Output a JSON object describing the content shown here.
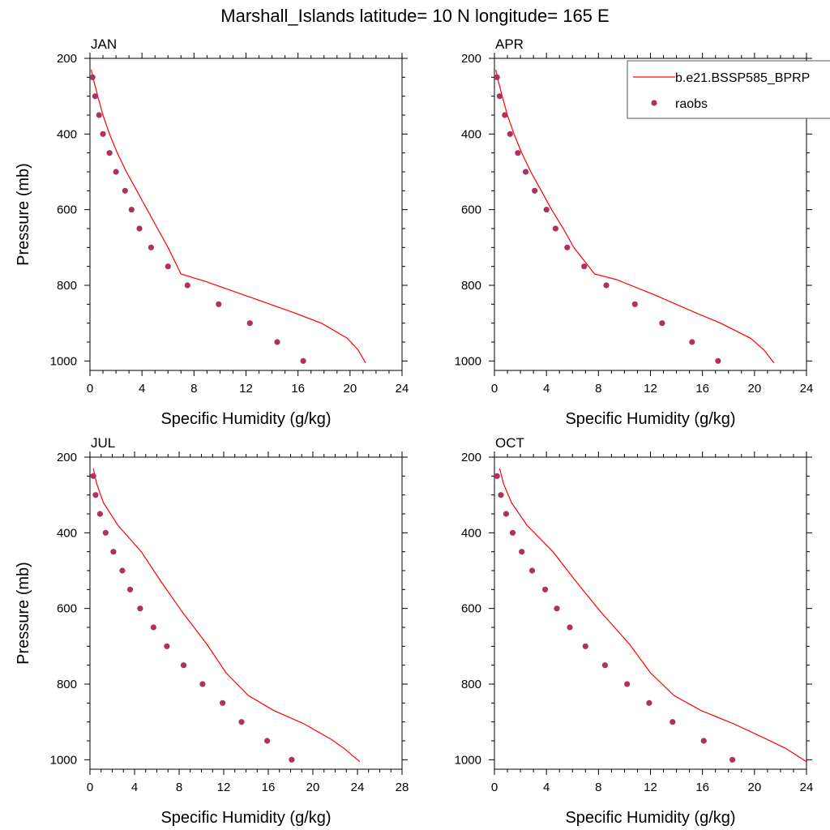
{
  "figure": {
    "title": "Marshall_Islands  latitude= 10 N longitude= 165 E"
  },
  "legend": {
    "model_label": "b.e21.BSSP585_BPRP",
    "obs_label": "raobs",
    "model_color": "#ff0000",
    "obs_color": "#b03060"
  },
  "chart_data": [
    {
      "type": "line",
      "panel": "JAN",
      "title": "JAN",
      "xlabel": "Specific Humidity (g/kg)",
      "ylabel": "Pressure (mb)",
      "xlim": [
        0,
        24
      ],
      "ylim": [
        1025,
        200
      ],
      "xticks": [
        0,
        4,
        8,
        12,
        16,
        20,
        24
      ],
      "yticks": [
        200,
        400,
        600,
        800,
        1000
      ],
      "series": [
        {
          "name": "b.e21.BSSP585_BPRP",
          "style": "line",
          "x": [
            0.1,
            0.3,
            0.6,
            1.0,
            1.5,
            2.1,
            2.8,
            3.6,
            4.4,
            5.2,
            6.0,
            7.0,
            8.9,
            11.8,
            15.5,
            17.8,
            19.8,
            20.6,
            21.2
          ],
          "y": [
            230,
            260,
            300,
            350,
            400,
            450,
            500,
            550,
            600,
            650,
            700,
            770,
            790,
            825,
            870,
            900,
            940,
            970,
            1005
          ]
        },
        {
          "name": "raobs",
          "style": "markers",
          "x": [
            0.2,
            0.4,
            0.7,
            1.0,
            1.5,
            2.0,
            2.7,
            3.2,
            3.8,
            4.7,
            6.0,
            7.5,
            9.9,
            12.3,
            14.4,
            16.4
          ],
          "y": [
            250,
            300,
            350,
            400,
            450,
            500,
            550,
            600,
            650,
            700,
            750,
            800,
            850,
            900,
            950,
            1000
          ]
        }
      ]
    },
    {
      "type": "line",
      "panel": "APR",
      "title": "APR",
      "xlabel": "Specific Humidity (g/kg)",
      "ylabel": "",
      "xlim": [
        0,
        24
      ],
      "ylim": [
        1025,
        200
      ],
      "xticks": [
        0,
        4,
        8,
        12,
        16,
        20,
        24
      ],
      "yticks": [
        200,
        400,
        600,
        800,
        1000
      ],
      "series": [
        {
          "name": "b.e21.BSSP585_BPRP",
          "style": "line",
          "x": [
            0.1,
            0.3,
            0.6,
            1.0,
            1.5,
            2.1,
            2.8,
            3.6,
            4.4,
            5.3,
            6.1,
            7.7,
            9.4,
            12.3,
            15.3,
            17.4,
            19.7,
            20.7,
            21.5
          ],
          "y": [
            230,
            260,
            300,
            350,
            400,
            450,
            500,
            550,
            600,
            650,
            700,
            770,
            785,
            825,
            870,
            900,
            940,
            970,
            1005
          ]
        },
        {
          "name": "raobs",
          "style": "markers",
          "x": [
            0.2,
            0.4,
            0.8,
            1.2,
            1.8,
            2.4,
            3.1,
            4.0,
            4.7,
            5.6,
            6.9,
            8.6,
            10.8,
            12.9,
            15.2,
            17.2
          ],
          "y": [
            250,
            300,
            350,
            400,
            450,
            500,
            550,
            600,
            650,
            700,
            750,
            800,
            850,
            900,
            950,
            1000
          ]
        }
      ]
    },
    {
      "type": "line",
      "panel": "JUL",
      "title": "JUL",
      "xlabel": "Specific Humidity (g/kg)",
      "ylabel": "Pressure (mb)",
      "xlim": [
        0,
        28
      ],
      "ylim": [
        1025,
        200
      ],
      "xticks": [
        0,
        4,
        8,
        12,
        16,
        20,
        24,
        28
      ],
      "yticks": [
        200,
        400,
        600,
        800,
        1000
      ],
      "series": [
        {
          "name": "b.e21.BSSP585_BPRP",
          "style": "line",
          "x": [
            0.3,
            0.6,
            1.2,
            2.5,
            4.6,
            6.4,
            8.3,
            10.5,
            12.2,
            14.2,
            16.5,
            19.2,
            21.6,
            22.8,
            24.2
          ],
          "y": [
            230,
            270,
            320,
            380,
            450,
            530,
            610,
            695,
            770,
            830,
            870,
            905,
            945,
            970,
            1005
          ]
        },
        {
          "name": "raobs",
          "style": "markers",
          "x": [
            0.3,
            0.5,
            0.9,
            1.4,
            2.1,
            2.9,
            3.6,
            4.5,
            5.7,
            6.9,
            8.4,
            10.1,
            11.9,
            13.6,
            15.9,
            18.1
          ],
          "y": [
            250,
            300,
            350,
            400,
            450,
            500,
            550,
            600,
            650,
            700,
            750,
            800,
            850,
            900,
            950,
            1000
          ]
        }
      ]
    },
    {
      "type": "line",
      "panel": "OCT",
      "title": "OCT",
      "xlabel": "Specific Humidity (g/kg)",
      "ylabel": "",
      "xlim": [
        0,
        24
      ],
      "ylim": [
        1025,
        200
      ],
      "xticks": [
        0,
        4,
        8,
        12,
        16,
        20,
        24
      ],
      "yticks": [
        200,
        400,
        600,
        800,
        1000
      ],
      "series": [
        {
          "name": "b.e21.BSSP585_BPRP",
          "style": "line",
          "x": [
            0.4,
            0.7,
            1.3,
            2.5,
            4.5,
            6.3,
            8.2,
            10.4,
            12.0,
            13.8,
            15.9,
            18.4,
            20.9,
            22.4,
            24.0
          ],
          "y": [
            230,
            270,
            320,
            380,
            450,
            530,
            610,
            695,
            770,
            830,
            870,
            905,
            945,
            970,
            1005
          ]
        },
        {
          "name": "raobs",
          "style": "markers",
          "x": [
            0.2,
            0.5,
            0.9,
            1.4,
            2.1,
            2.9,
            3.9,
            4.8,
            5.8,
            7.0,
            8.5,
            10.2,
            11.9,
            13.7,
            16.1,
            18.3
          ],
          "y": [
            250,
            300,
            350,
            400,
            450,
            500,
            550,
            600,
            650,
            700,
            750,
            800,
            850,
            900,
            950,
            1000
          ]
        }
      ]
    }
  ]
}
